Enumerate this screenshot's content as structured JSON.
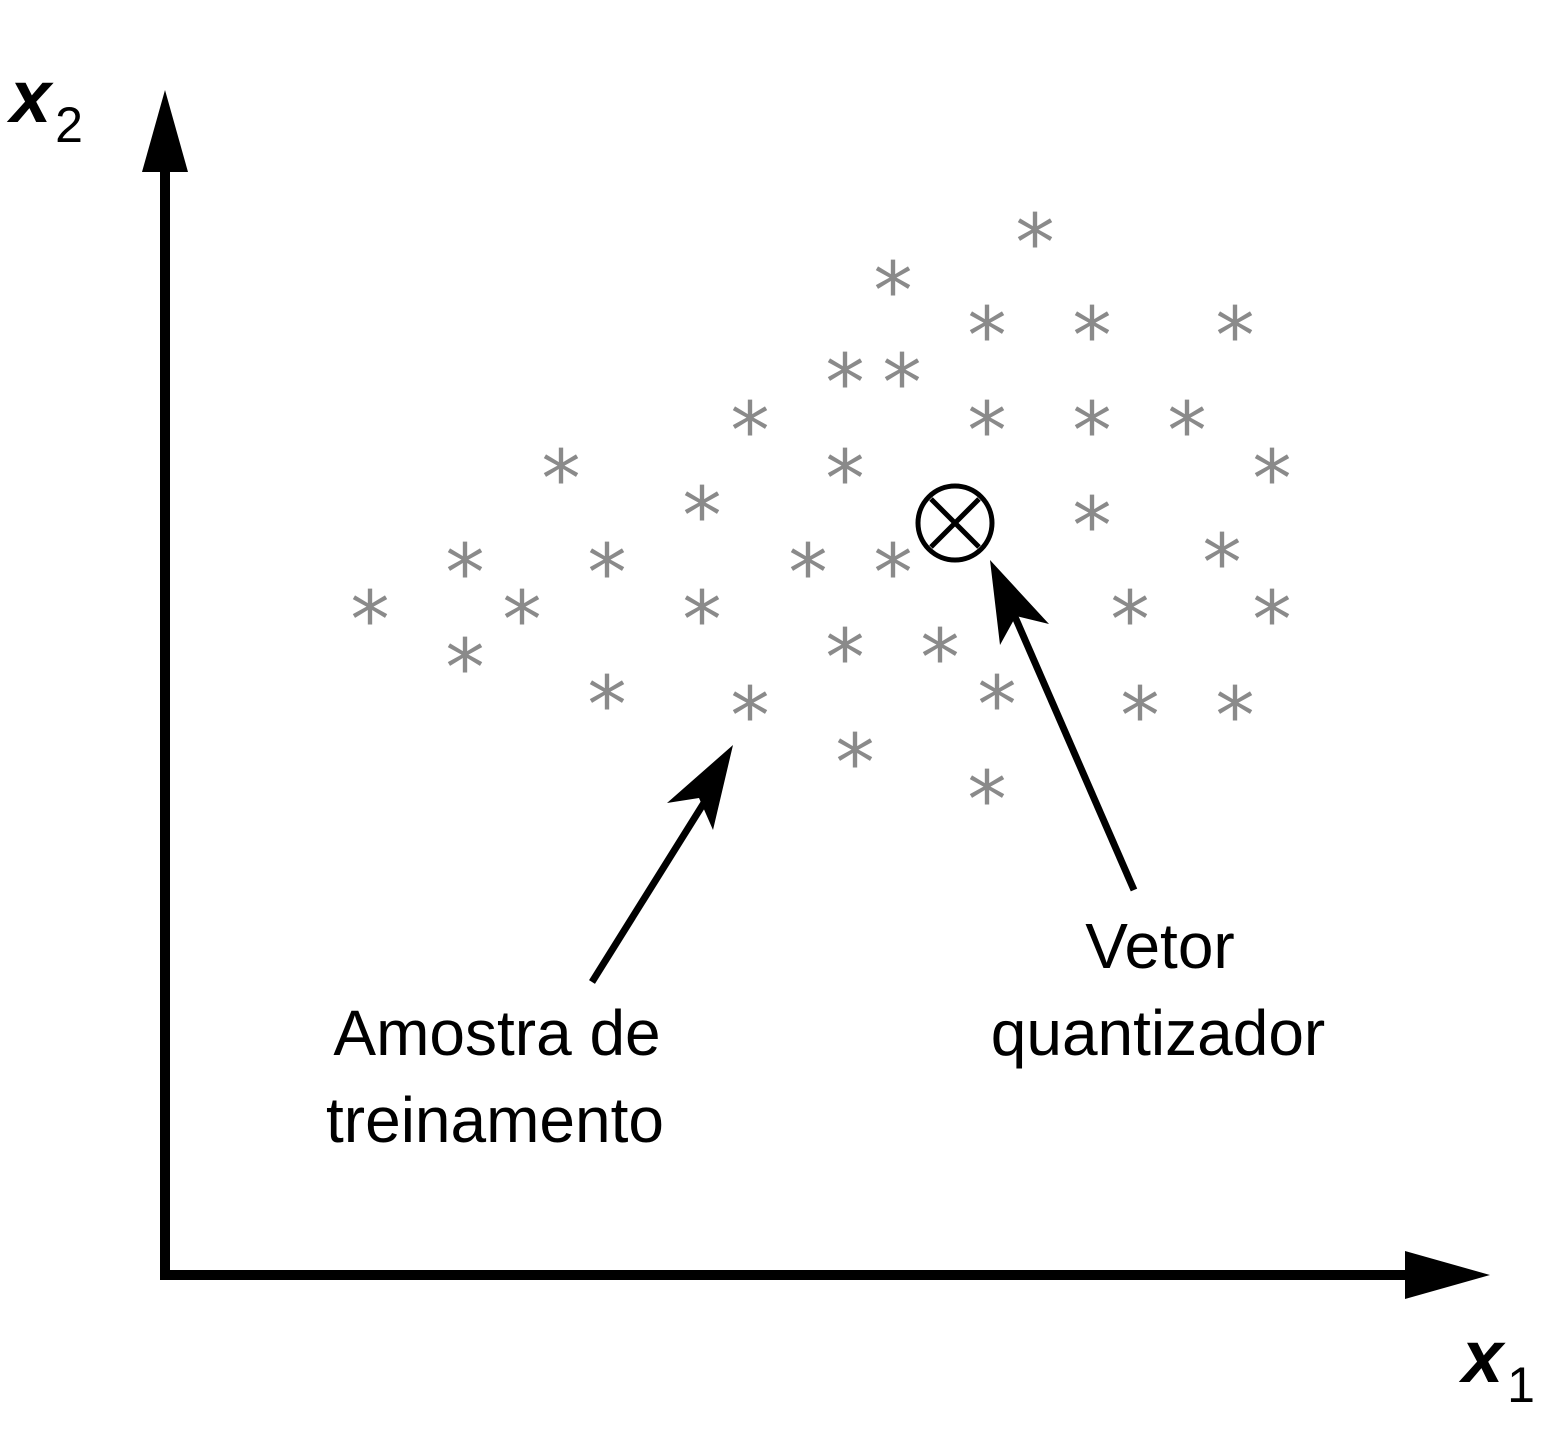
{
  "axes": {
    "x_var": "x",
    "x_sub": "1",
    "y_var": "x",
    "y_sub": "2"
  },
  "annotations": {
    "sample_line1": "Amostra de",
    "sample_line2": "treinamento",
    "vector_line1": "Vetor",
    "vector_line2": "quantizador"
  },
  "marks": {
    "sample_glyph": "*",
    "codevector_glyph": "⊗"
  },
  "colors": {
    "sample": "#8a8a8a",
    "ink": "#000000",
    "background": "#ffffff"
  }
}
